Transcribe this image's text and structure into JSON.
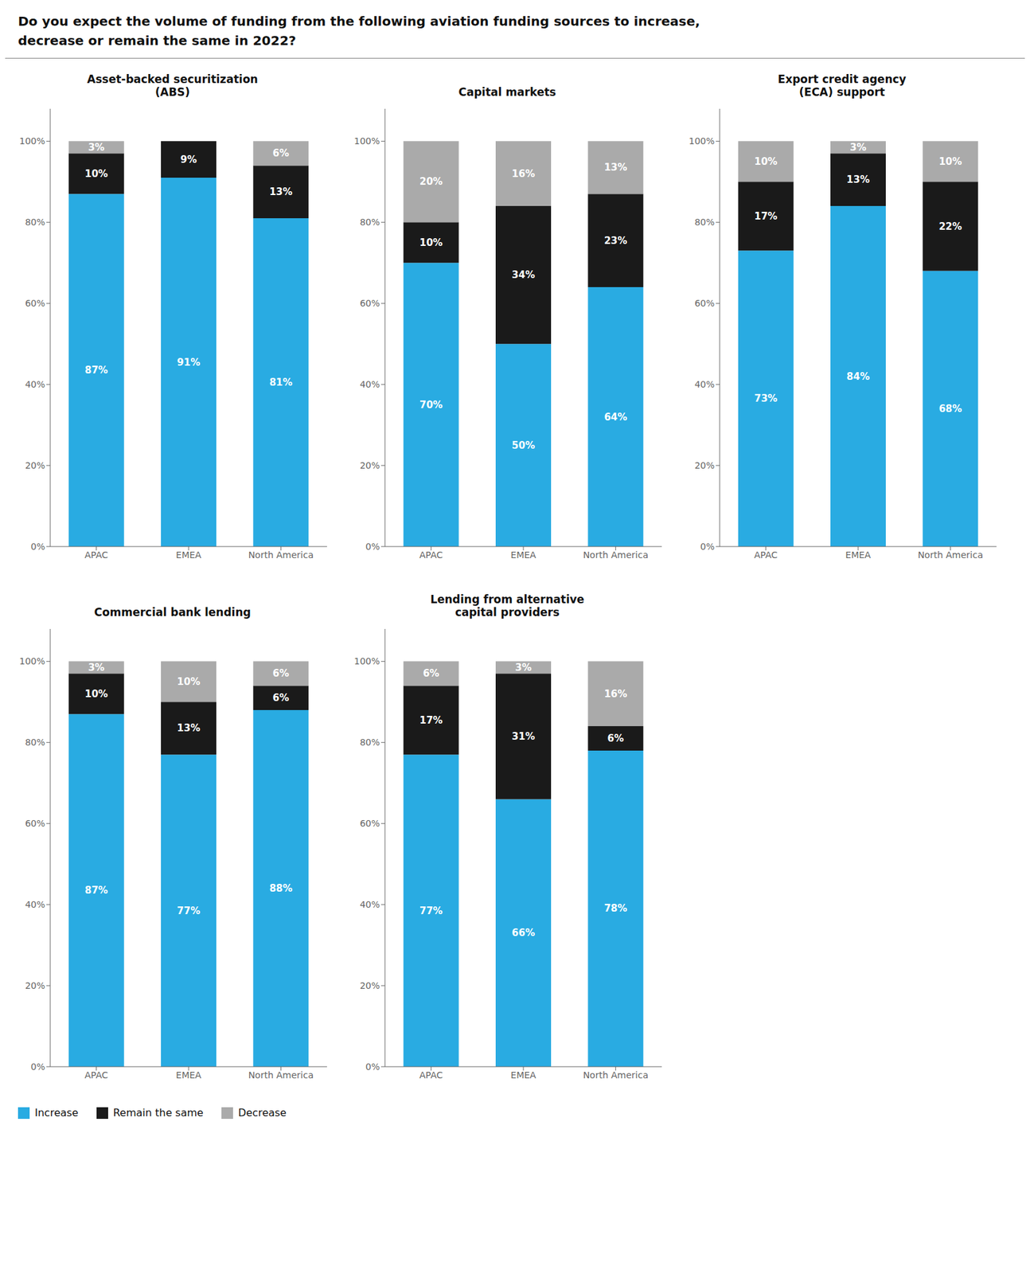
{
  "title": "Do you expect the volume of funding from the following aviation funding sources to increase,\ndecrease or remain the same in 2022?",
  "legend": "lower left",
  "chart_data": [
    {
      "type": "bar",
      "title": "Asset-backed securitization\n(ABS)",
      "stacked": true,
      "data_labels": true,
      "grid": false,
      "categories": [
        "APAC",
        "EMEA",
        "North America"
      ],
      "ylim": [
        0,
        108
      ],
      "yticks": [
        {
          "value": 0,
          "label": "0%"
        },
        {
          "value": 20,
          "label": "20%"
        },
        {
          "value": 40,
          "label": "40%"
        },
        {
          "value": 60,
          "label": "60%"
        },
        {
          "value": 80,
          "label": "80%"
        },
        {
          "value": 100,
          "label": "100%"
        }
      ],
      "series": [
        {
          "name": "Increase",
          "color": "#29abe2",
          "values": [
            87,
            91,
            81
          ],
          "value_labels": [
            "87%",
            "91%",
            "81%"
          ]
        },
        {
          "name": "Remain the same",
          "color": "#1a1a1a",
          "values": [
            10,
            9,
            13
          ],
          "value_labels": [
            "10%",
            "9%",
            "13%"
          ]
        },
        {
          "name": "Decrease",
          "color": "#aaaaaa",
          "values": [
            3,
            0,
            6
          ],
          "value_labels": [
            "3%",
            null,
            "6%"
          ]
        }
      ]
    },
    {
      "type": "bar",
      "title": "Capital markets",
      "stacked": true,
      "data_labels": true,
      "grid": false,
      "categories": [
        "APAC",
        "EMEA",
        "North America"
      ],
      "ylim": [
        0,
        108
      ],
      "yticks": [
        {
          "value": 0,
          "label": "0%"
        },
        {
          "value": 20,
          "label": "20%"
        },
        {
          "value": 40,
          "label": "40%"
        },
        {
          "value": 60,
          "label": "60%"
        },
        {
          "value": 80,
          "label": "80%"
        },
        {
          "value": 100,
          "label": "100%"
        }
      ],
      "series": [
        {
          "name": "Increase",
          "color": "#29abe2",
          "values": [
            70,
            50,
            64
          ],
          "value_labels": [
            "70%",
            "50%",
            "64%"
          ]
        },
        {
          "name": "Remain the same",
          "color": "#1a1a1a",
          "values": [
            10,
            34,
            23
          ],
          "value_labels": [
            "10%",
            "34%",
            "23%"
          ]
        },
        {
          "name": "Decrease",
          "color": "#aaaaaa",
          "values": [
            20,
            16,
            13
          ],
          "value_labels": [
            "20%",
            "16%",
            "13%"
          ]
        }
      ]
    },
    {
      "type": "bar",
      "title": "Export credit agency\n(ECA) support",
      "stacked": true,
      "data_labels": true,
      "grid": false,
      "categories": [
        "APAC",
        "EMEA",
        "North America"
      ],
      "ylim": [
        0,
        108
      ],
      "yticks": [
        {
          "value": 0,
          "label": "0%"
        },
        {
          "value": 20,
          "label": "20%"
        },
        {
          "value": 40,
          "label": "40%"
        },
        {
          "value": 60,
          "label": "60%"
        },
        {
          "value": 80,
          "label": "80%"
        },
        {
          "value": 100,
          "label": "100%"
        }
      ],
      "series": [
        {
          "name": "Increase",
          "color": "#29abe2",
          "values": [
            73,
            84,
            68
          ],
          "value_labels": [
            "73%",
            "84%",
            "68%"
          ]
        },
        {
          "name": "Remain the same",
          "color": "#1a1a1a",
          "values": [
            17,
            13,
            22
          ],
          "value_labels": [
            "17%",
            "13%",
            "22%"
          ]
        },
        {
          "name": "Decrease",
          "color": "#aaaaaa",
          "values": [
            10,
            3,
            10
          ],
          "value_labels": [
            "10%",
            "3%",
            "10%"
          ]
        }
      ]
    },
    {
      "type": "bar",
      "title": "Commercial bank lending",
      "stacked": true,
      "data_labels": true,
      "grid": false,
      "categories": [
        "APAC",
        "EMEA",
        "North America"
      ],
      "ylim": [
        0,
        108
      ],
      "yticks": [
        {
          "value": 0,
          "label": "0%"
        },
        {
          "value": 20,
          "label": "20%"
        },
        {
          "value": 40,
          "label": "40%"
        },
        {
          "value": 60,
          "label": "60%"
        },
        {
          "value": 80,
          "label": "80%"
        },
        {
          "value": 100,
          "label": "100%"
        }
      ],
      "series": [
        {
          "name": "Increase",
          "color": "#29abe2",
          "values": [
            87,
            77,
            88
          ],
          "value_labels": [
            "87%",
            "77%",
            "88%"
          ]
        },
        {
          "name": "Remain the same",
          "color": "#1a1a1a",
          "values": [
            10,
            13,
            6
          ],
          "value_labels": [
            "10%",
            "13%",
            "6%"
          ]
        },
        {
          "name": "Decrease",
          "color": "#aaaaaa",
          "values": [
            3,
            10,
            6
          ],
          "value_labels": [
            "3%",
            "10%",
            "6%"
          ]
        }
      ]
    },
    {
      "type": "bar",
      "title": "Lending from alternative\ncapital providers",
      "stacked": true,
      "data_labels": true,
      "grid": false,
      "categories": [
        "APAC",
        "EMEA",
        "North America"
      ],
      "ylim": [
        0,
        108
      ],
      "yticks": [
        {
          "value": 0,
          "label": "0%"
        },
        {
          "value": 20,
          "label": "20%"
        },
        {
          "value": 40,
          "label": "40%"
        },
        {
          "value": 60,
          "label": "60%"
        },
        {
          "value": 80,
          "label": "80%"
        },
        {
          "value": 100,
          "label": "100%"
        }
      ],
      "series": [
        {
          "name": "Increase",
          "color": "#29abe2",
          "values": [
            77,
            66,
            78
          ],
          "value_labels": [
            "77%",
            "66%",
            "78%"
          ]
        },
        {
          "name": "Remain the same",
          "color": "#1a1a1a",
          "values": [
            17,
            31,
            6
          ],
          "value_labels": [
            "17%",
            "31%",
            "6%"
          ]
        },
        {
          "name": "Decrease",
          "color": "#aaaaaa",
          "values": [
            6,
            3,
            16
          ],
          "value_labels": [
            "6%",
            "3%",
            "16%"
          ]
        }
      ]
    }
  ]
}
